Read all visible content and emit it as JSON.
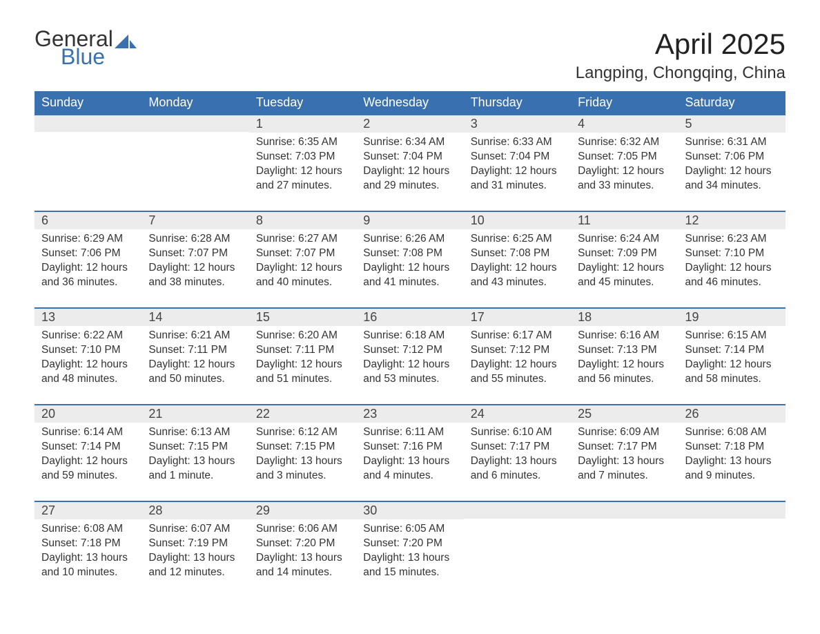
{
  "brand": {
    "part1": "General",
    "part2": "Blue",
    "sail_color": "#3970b0"
  },
  "title": "April 2025",
  "location": "Langping, Chongqing, China",
  "colors": {
    "header_bg": "#3970b0",
    "header_text": "#ffffff",
    "daynum_bg": "#ececec",
    "daynum_border": "#3970b0",
    "body_text": "#333333",
    "page_bg": "#ffffff"
  },
  "typography": {
    "month_title_fontsize": 42,
    "location_fontsize": 24,
    "header_fontsize": 18,
    "daynum_fontsize": 18,
    "body_fontsize": 15.5,
    "font_family": "Segoe UI"
  },
  "weekdays": [
    "Sunday",
    "Monday",
    "Tuesday",
    "Wednesday",
    "Thursday",
    "Friday",
    "Saturday"
  ],
  "weeks": [
    [
      null,
      null,
      {
        "n": "1",
        "sunrise": "Sunrise: 6:35 AM",
        "sunset": "Sunset: 7:03 PM",
        "daylight": "Daylight: 12 hours and 27 minutes."
      },
      {
        "n": "2",
        "sunrise": "Sunrise: 6:34 AM",
        "sunset": "Sunset: 7:04 PM",
        "daylight": "Daylight: 12 hours and 29 minutes."
      },
      {
        "n": "3",
        "sunrise": "Sunrise: 6:33 AM",
        "sunset": "Sunset: 7:04 PM",
        "daylight": "Daylight: 12 hours and 31 minutes."
      },
      {
        "n": "4",
        "sunrise": "Sunrise: 6:32 AM",
        "sunset": "Sunset: 7:05 PM",
        "daylight": "Daylight: 12 hours and 33 minutes."
      },
      {
        "n": "5",
        "sunrise": "Sunrise: 6:31 AM",
        "sunset": "Sunset: 7:06 PM",
        "daylight": "Daylight: 12 hours and 34 minutes."
      }
    ],
    [
      {
        "n": "6",
        "sunrise": "Sunrise: 6:29 AM",
        "sunset": "Sunset: 7:06 PM",
        "daylight": "Daylight: 12 hours and 36 minutes."
      },
      {
        "n": "7",
        "sunrise": "Sunrise: 6:28 AM",
        "sunset": "Sunset: 7:07 PM",
        "daylight": "Daylight: 12 hours and 38 minutes."
      },
      {
        "n": "8",
        "sunrise": "Sunrise: 6:27 AM",
        "sunset": "Sunset: 7:07 PM",
        "daylight": "Daylight: 12 hours and 40 minutes."
      },
      {
        "n": "9",
        "sunrise": "Sunrise: 6:26 AM",
        "sunset": "Sunset: 7:08 PM",
        "daylight": "Daylight: 12 hours and 41 minutes."
      },
      {
        "n": "10",
        "sunrise": "Sunrise: 6:25 AM",
        "sunset": "Sunset: 7:08 PM",
        "daylight": "Daylight: 12 hours and 43 minutes."
      },
      {
        "n": "11",
        "sunrise": "Sunrise: 6:24 AM",
        "sunset": "Sunset: 7:09 PM",
        "daylight": "Daylight: 12 hours and 45 minutes."
      },
      {
        "n": "12",
        "sunrise": "Sunrise: 6:23 AM",
        "sunset": "Sunset: 7:10 PM",
        "daylight": "Daylight: 12 hours and 46 minutes."
      }
    ],
    [
      {
        "n": "13",
        "sunrise": "Sunrise: 6:22 AM",
        "sunset": "Sunset: 7:10 PM",
        "daylight": "Daylight: 12 hours and 48 minutes."
      },
      {
        "n": "14",
        "sunrise": "Sunrise: 6:21 AM",
        "sunset": "Sunset: 7:11 PM",
        "daylight": "Daylight: 12 hours and 50 minutes."
      },
      {
        "n": "15",
        "sunrise": "Sunrise: 6:20 AM",
        "sunset": "Sunset: 7:11 PM",
        "daylight": "Daylight: 12 hours and 51 minutes."
      },
      {
        "n": "16",
        "sunrise": "Sunrise: 6:18 AM",
        "sunset": "Sunset: 7:12 PM",
        "daylight": "Daylight: 12 hours and 53 minutes."
      },
      {
        "n": "17",
        "sunrise": "Sunrise: 6:17 AM",
        "sunset": "Sunset: 7:12 PM",
        "daylight": "Daylight: 12 hours and 55 minutes."
      },
      {
        "n": "18",
        "sunrise": "Sunrise: 6:16 AM",
        "sunset": "Sunset: 7:13 PM",
        "daylight": "Daylight: 12 hours and 56 minutes."
      },
      {
        "n": "19",
        "sunrise": "Sunrise: 6:15 AM",
        "sunset": "Sunset: 7:14 PM",
        "daylight": "Daylight: 12 hours and 58 minutes."
      }
    ],
    [
      {
        "n": "20",
        "sunrise": "Sunrise: 6:14 AM",
        "sunset": "Sunset: 7:14 PM",
        "daylight": "Daylight: 12 hours and 59 minutes."
      },
      {
        "n": "21",
        "sunrise": "Sunrise: 6:13 AM",
        "sunset": "Sunset: 7:15 PM",
        "daylight": "Daylight: 13 hours and 1 minute."
      },
      {
        "n": "22",
        "sunrise": "Sunrise: 6:12 AM",
        "sunset": "Sunset: 7:15 PM",
        "daylight": "Daylight: 13 hours and 3 minutes."
      },
      {
        "n": "23",
        "sunrise": "Sunrise: 6:11 AM",
        "sunset": "Sunset: 7:16 PM",
        "daylight": "Daylight: 13 hours and 4 minutes."
      },
      {
        "n": "24",
        "sunrise": "Sunrise: 6:10 AM",
        "sunset": "Sunset: 7:17 PM",
        "daylight": "Daylight: 13 hours and 6 minutes."
      },
      {
        "n": "25",
        "sunrise": "Sunrise: 6:09 AM",
        "sunset": "Sunset: 7:17 PM",
        "daylight": "Daylight: 13 hours and 7 minutes."
      },
      {
        "n": "26",
        "sunrise": "Sunrise: 6:08 AM",
        "sunset": "Sunset: 7:18 PM",
        "daylight": "Daylight: 13 hours and 9 minutes."
      }
    ],
    [
      {
        "n": "27",
        "sunrise": "Sunrise: 6:08 AM",
        "sunset": "Sunset: 7:18 PM",
        "daylight": "Daylight: 13 hours and 10 minutes."
      },
      {
        "n": "28",
        "sunrise": "Sunrise: 6:07 AM",
        "sunset": "Sunset: 7:19 PM",
        "daylight": "Daylight: 13 hours and 12 minutes."
      },
      {
        "n": "29",
        "sunrise": "Sunrise: 6:06 AM",
        "sunset": "Sunset: 7:20 PM",
        "daylight": "Daylight: 13 hours and 14 minutes."
      },
      {
        "n": "30",
        "sunrise": "Sunrise: 6:05 AM",
        "sunset": "Sunset: 7:20 PM",
        "daylight": "Daylight: 13 hours and 15 minutes."
      },
      null,
      null,
      null
    ]
  ]
}
